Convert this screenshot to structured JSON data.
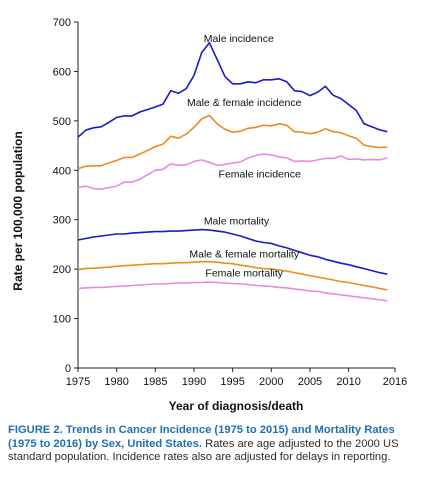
{
  "chart_data": {
    "type": "line",
    "ylabel": "Rate per 100,000 population",
    "xlabel": "Year of diagnosis/death",
    "xlim": [
      1975,
      2016
    ],
    "ylim": [
      0,
      700
    ],
    "x_ticks": [
      1975,
      1980,
      1985,
      1990,
      1995,
      2000,
      2005,
      2010,
      2016
    ],
    "y_ticks": [
      0,
      100,
      200,
      300,
      400,
      500,
      600,
      700
    ],
    "grid": false,
    "x": [
      1975,
      1976,
      1977,
      1978,
      1979,
      1980,
      1981,
      1982,
      1983,
      1984,
      1985,
      1986,
      1987,
      1988,
      1989,
      1990,
      1991,
      1992,
      1993,
      1994,
      1995,
      1996,
      1997,
      1998,
      1999,
      2000,
      2001,
      2002,
      2003,
      2004,
      2005,
      2006,
      2007,
      2008,
      2009,
      2010,
      2011,
      2012,
      2013,
      2014,
      2015
    ],
    "series": [
      {
        "name": "Male incidence",
        "color": "#1a1ac8",
        "values": [
          467,
          481,
          486,
          488,
          497,
          507,
          510,
          510,
          518,
          523,
          528,
          534,
          561,
          556,
          565,
          592,
          638,
          658,
          624,
          590,
          575,
          575,
          579,
          577,
          583,
          583,
          585,
          579,
          561,
          559,
          551,
          558,
          570,
          552,
          545,
          533,
          521,
          494,
          488,
          482,
          478
        ]
      },
      {
        "name": "Male & female incidence",
        "color": "#f08a1e",
        "values": [
          403,
          408,
          409,
          409,
          415,
          420,
          426,
          426,
          433,
          440,
          448,
          453,
          469,
          465,
          473,
          487,
          504,
          511,
          494,
          483,
          477,
          479,
          485,
          487,
          491,
          490,
          494,
          491,
          478,
          477,
          474,
          477,
          484,
          478,
          476,
          470,
          465,
          451,
          448,
          446,
          447
        ]
      },
      {
        "name": "Female incidence",
        "color": "#e78ae3",
        "values": [
          365,
          368,
          363,
          362,
          365,
          368,
          376,
          376,
          382,
          391,
          400,
          402,
          413,
          410,
          411,
          418,
          421,
          416,
          410,
          412,
          415,
          417,
          425,
          430,
          433,
          431,
          427,
          425,
          418,
          419,
          418,
          421,
          424,
          424,
          429,
          422,
          423,
          421,
          422,
          421,
          425
        ]
      },
      {
        "name": "Male mortality",
        "color": "#1a1ac8",
        "values": [
          259,
          262,
          265,
          267,
          269,
          271,
          271,
          273,
          274,
          275,
          276,
          276,
          277,
          277,
          278,
          279,
          280,
          279,
          277,
          275,
          271,
          267,
          262,
          257,
          254,
          252,
          247,
          243,
          238,
          233,
          228,
          225,
          220,
          216,
          212,
          209,
          205,
          201,
          197,
          193,
          190
        ]
      },
      {
        "name": "Male & female mortality",
        "color": "#f08a1e",
        "values": [
          199,
          201,
          202,
          203,
          204,
          206,
          207,
          208,
          209,
          210,
          211,
          211,
          212,
          213,
          213,
          214,
          215,
          215,
          214,
          212,
          211,
          208,
          206,
          203,
          201,
          200,
          198,
          196,
          193,
          190,
          187,
          184,
          181,
          178,
          175,
          173,
          170,
          167,
          164,
          161,
          158
        ]
      },
      {
        "name": "Female mortality",
        "color": "#e78ae3",
        "values": [
          161,
          162,
          163,
          163,
          164,
          165,
          166,
          167,
          168,
          169,
          170,
          170,
          171,
          172,
          172,
          173,
          173,
          174,
          173,
          172,
          171,
          170,
          169,
          167,
          166,
          165,
          163,
          162,
          160,
          158,
          156,
          155,
          152,
          150,
          148,
          146,
          144,
          142,
          140,
          138,
          136
        ]
      }
    ],
    "annotations": [
      {
        "text": "Male incidence",
        "x": 1995.8,
        "y": 660
      },
      {
        "text": "Male & female incidence",
        "x": 1996.5,
        "y": 530
      },
      {
        "text": "Female incidence",
        "x": 1998.5,
        "y": 385
      },
      {
        "text": "Male mortality",
        "x": 1995.5,
        "y": 290
      },
      {
        "text": "Male & female mortality",
        "x": 1996.5,
        "y": 224
      },
      {
        "text": "Female mortality",
        "x": 1996.5,
        "y": 185
      }
    ]
  },
  "caption": {
    "label": "FIGURE 2.",
    "title": "Trends in Cancer Incidence (1975 to 2015) and Mortality Rates (1975 to 2016) by Sex, United States.",
    "body": "Rates are age adjusted to the 2000 US standard population. Incidence rates also are adjusted for delays in reporting."
  }
}
